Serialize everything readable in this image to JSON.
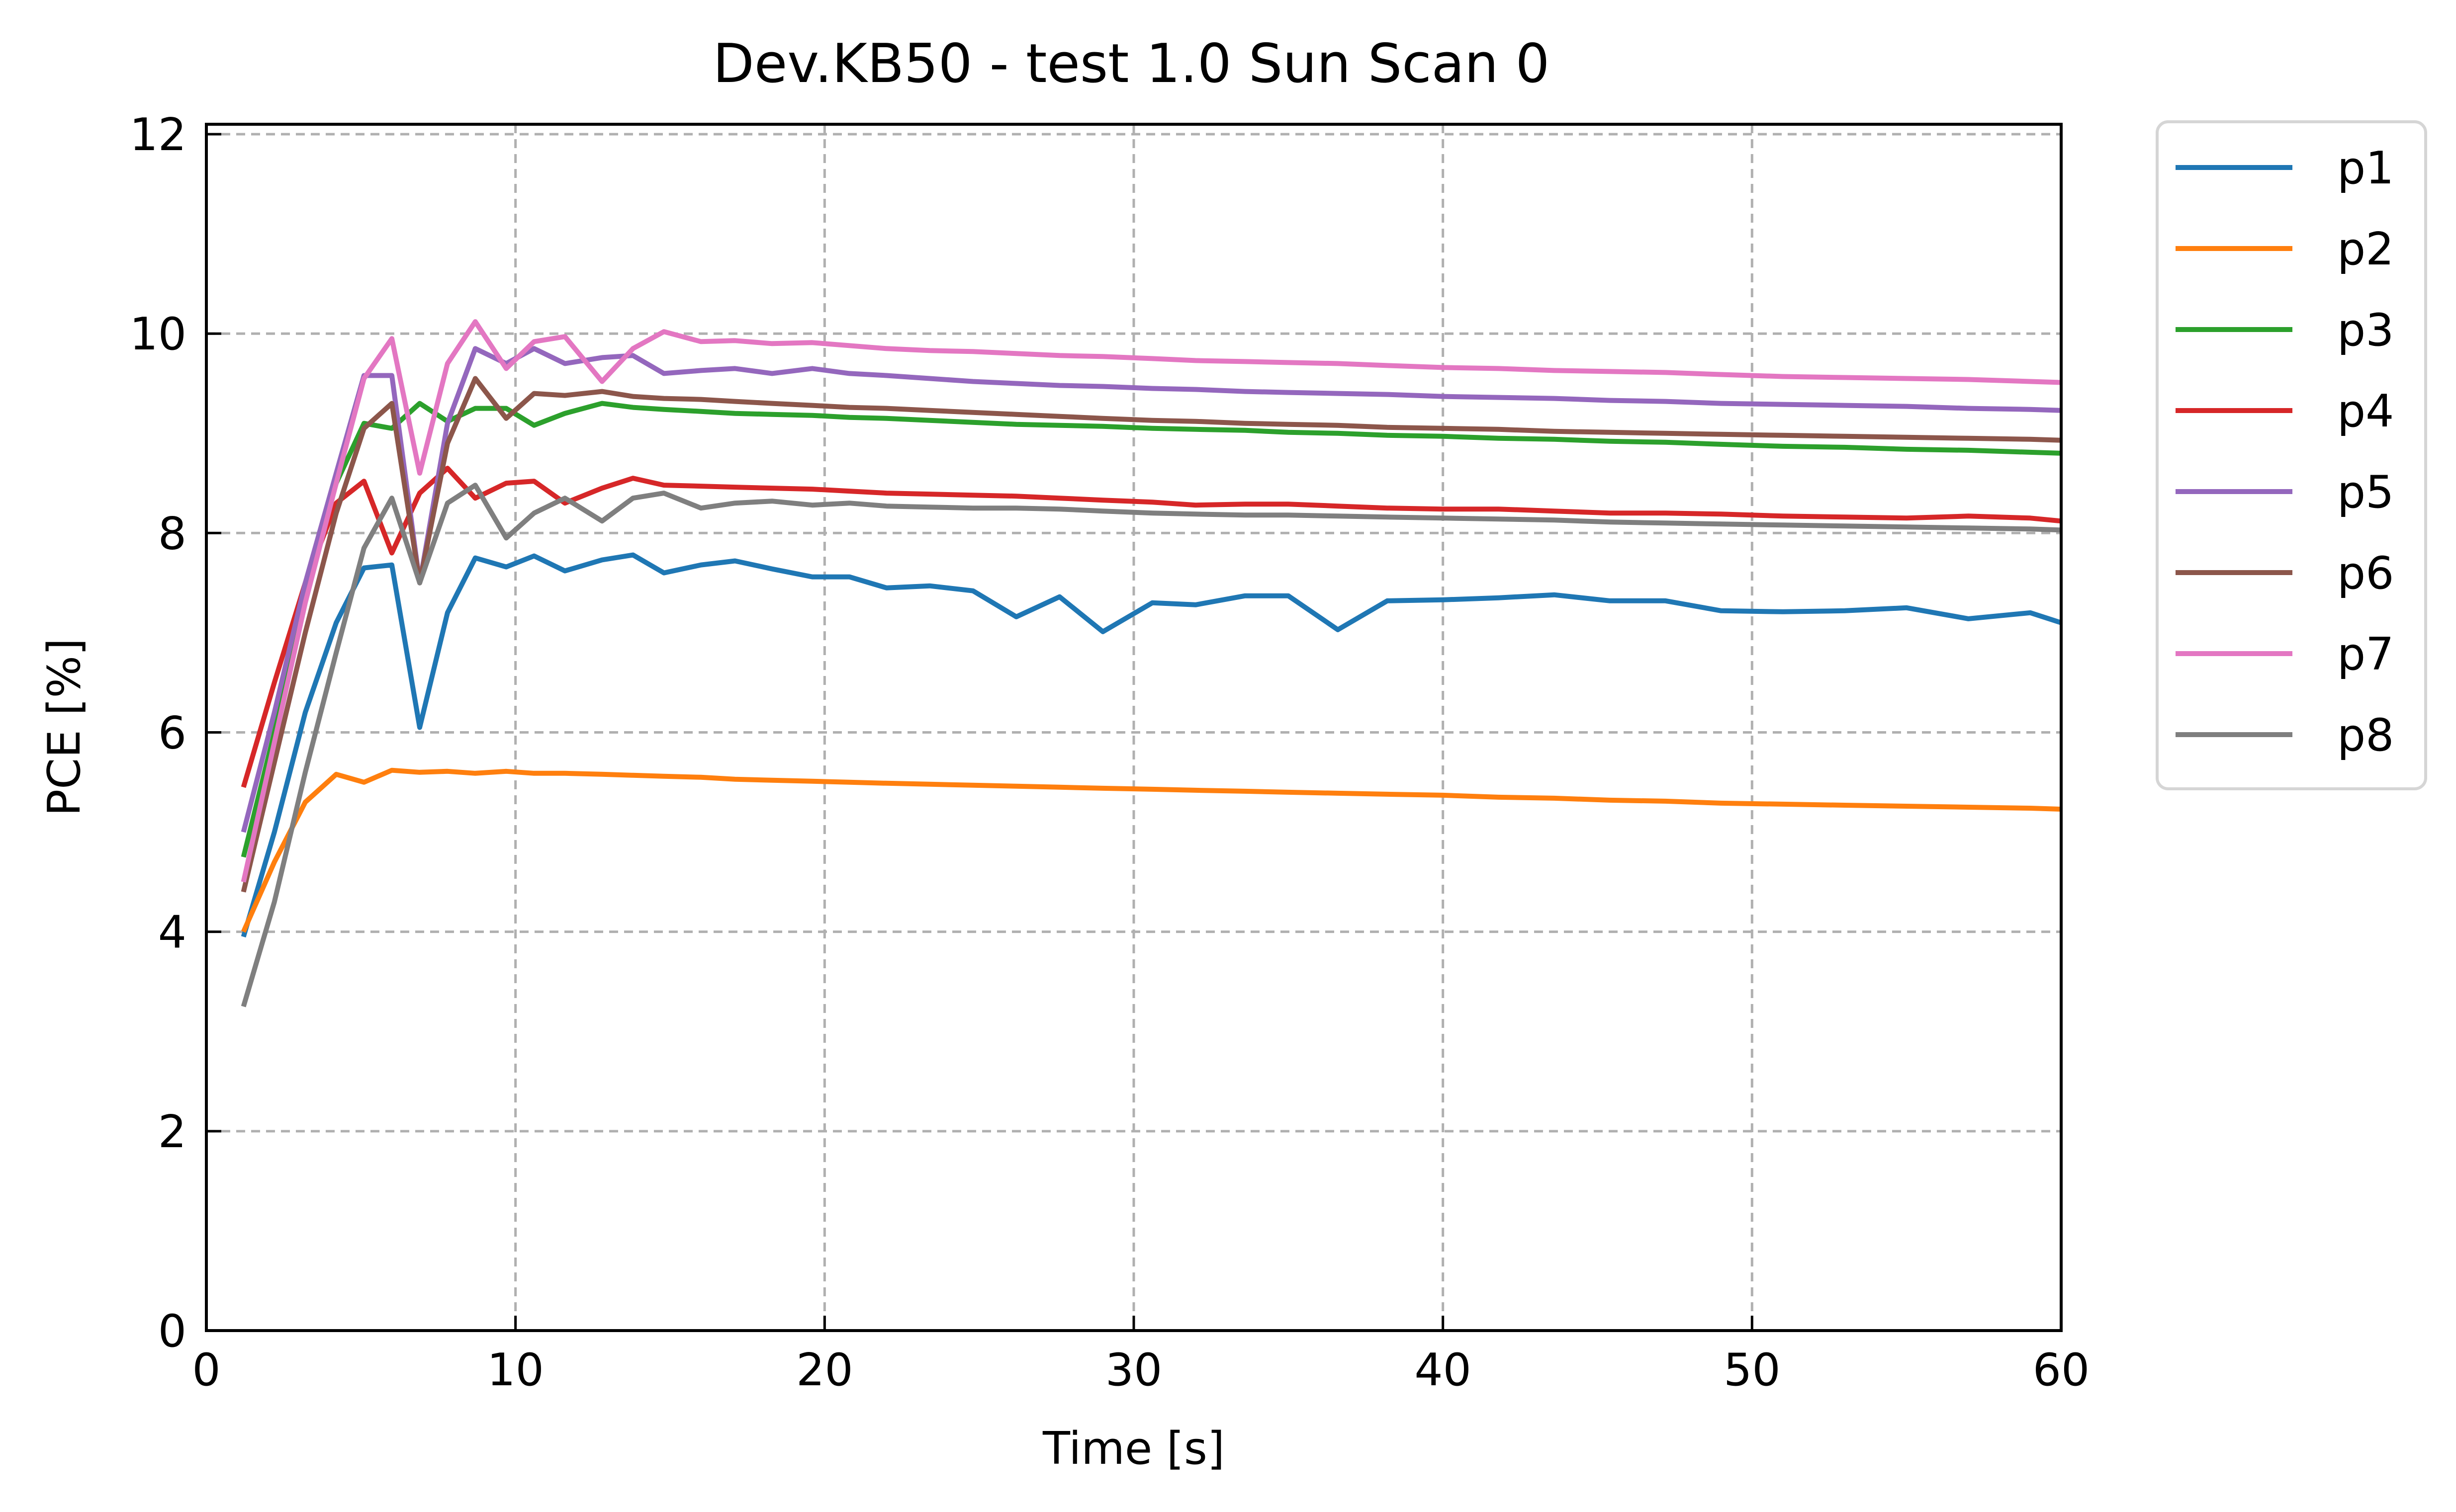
{
  "chart_data": {
    "type": "line",
    "title": "Dev.KB50 - test  1.0 Sun Scan 0",
    "xlabel": "Time [s]",
    "ylabel": "PCE [%]",
    "xlim": [
      0,
      60
    ],
    "ylim": [
      0,
      12.1
    ],
    "xticks": [
      0,
      10,
      20,
      30,
      40,
      50,
      60
    ],
    "yticks": [
      0,
      2,
      4,
      6,
      8,
      10,
      12
    ],
    "grid": true,
    "legend_position": "outside-top-right",
    "x": [
      1.2,
      2.2,
      3.2,
      4.2,
      5.1,
      6.0,
      6.9,
      7.8,
      8.7,
      9.7,
      10.6,
      11.6,
      12.8,
      13.8,
      14.8,
      16.0,
      17.1,
      18.3,
      19.6,
      20.8,
      22.0,
      23.4,
      24.8,
      26.2,
      27.6,
      29.0,
      30.6,
      32.0,
      33.6,
      35.0,
      36.6,
      38.2,
      40.0,
      41.8,
      43.6,
      45.4,
      47.2,
      49.0,
      51.0,
      53.0,
      55.0,
      57.0,
      59.0,
      60.0
    ],
    "series": [
      {
        "name": "p1",
        "color": "#1f77b4",
        "values": [
          3.95,
          5.0,
          6.2,
          7.1,
          7.65,
          7.68,
          6.05,
          7.2,
          7.75,
          7.66,
          7.77,
          7.62,
          7.73,
          7.78,
          7.6,
          7.68,
          7.72,
          7.64,
          7.56,
          7.56,
          7.45,
          7.47,
          7.42,
          7.16,
          7.36,
          7.01,
          7.3,
          7.28,
          7.37,
          7.37,
          7.03,
          7.32,
          7.33,
          7.35,
          7.38,
          7.32,
          7.32,
          7.22,
          7.21,
          7.22,
          7.25,
          7.14,
          7.2,
          7.1
        ]
      },
      {
        "name": "p2",
        "color": "#ff7f0e",
        "values": [
          4.0,
          4.7,
          5.3,
          5.58,
          5.5,
          5.62,
          5.6,
          5.61,
          5.59,
          5.61,
          5.59,
          5.59,
          5.58,
          5.57,
          5.56,
          5.55,
          5.53,
          5.52,
          5.51,
          5.5,
          5.49,
          5.48,
          5.47,
          5.46,
          5.45,
          5.44,
          5.43,
          5.42,
          5.41,
          5.4,
          5.39,
          5.38,
          5.37,
          5.35,
          5.34,
          5.32,
          5.31,
          5.29,
          5.28,
          5.27,
          5.26,
          5.25,
          5.24,
          5.23
        ]
      },
      {
        "name": "p3",
        "color": "#2ca02c",
        "values": [
          4.75,
          6.0,
          7.4,
          8.5,
          9.1,
          9.05,
          9.3,
          9.12,
          9.25,
          9.25,
          9.08,
          9.2,
          9.3,
          9.26,
          9.24,
          9.22,
          9.2,
          9.19,
          9.18,
          9.16,
          9.15,
          9.13,
          9.11,
          9.09,
          9.08,
          9.07,
          9.05,
          9.04,
          9.03,
          9.01,
          9.0,
          8.98,
          8.97,
          8.95,
          8.94,
          8.92,
          8.91,
          8.89,
          8.87,
          8.86,
          8.84,
          8.83,
          8.81,
          8.8
        ]
      },
      {
        "name": "p4",
        "color": "#d62728",
        "values": [
          5.45,
          6.5,
          7.5,
          8.3,
          8.52,
          7.8,
          8.4,
          8.65,
          8.35,
          8.5,
          8.52,
          8.3,
          8.45,
          8.55,
          8.48,
          8.47,
          8.46,
          8.45,
          8.44,
          8.42,
          8.4,
          8.39,
          8.38,
          8.37,
          8.35,
          8.33,
          8.31,
          8.28,
          8.29,
          8.29,
          8.27,
          8.25,
          8.24,
          8.24,
          8.22,
          8.2,
          8.2,
          8.19,
          8.17,
          8.16,
          8.15,
          8.17,
          8.15,
          8.12
        ]
      },
      {
        "name": "p5",
        "color": "#9467bd",
        "values": [
          5.0,
          6.2,
          7.5,
          8.6,
          9.58,
          9.58,
          7.5,
          9.1,
          9.85,
          9.7,
          9.85,
          9.7,
          9.76,
          9.78,
          9.6,
          9.63,
          9.65,
          9.6,
          9.65,
          9.6,
          9.58,
          9.55,
          9.52,
          9.5,
          9.48,
          9.47,
          9.45,
          9.44,
          9.42,
          9.41,
          9.4,
          9.39,
          9.37,
          9.36,
          9.35,
          9.33,
          9.32,
          9.3,
          9.29,
          9.28,
          9.27,
          9.25,
          9.24,
          9.23
        ]
      },
      {
        "name": "p6",
        "color": "#8c564b",
        "values": [
          4.4,
          5.7,
          7.0,
          8.2,
          9.05,
          9.3,
          7.5,
          8.9,
          9.55,
          9.15,
          9.4,
          9.38,
          9.42,
          9.37,
          9.35,
          9.34,
          9.32,
          9.3,
          9.28,
          9.26,
          9.25,
          9.23,
          9.21,
          9.19,
          9.17,
          9.15,
          9.13,
          9.12,
          9.1,
          9.09,
          9.08,
          9.06,
          9.05,
          9.04,
          9.02,
          9.01,
          9.0,
          8.99,
          8.98,
          8.97,
          8.96,
          8.95,
          8.94,
          8.93
        ]
      },
      {
        "name": "p7",
        "color": "#e377c2",
        "values": [
          4.5,
          5.9,
          7.3,
          8.5,
          9.55,
          9.95,
          8.6,
          9.7,
          10.12,
          9.65,
          9.92,
          9.97,
          9.52,
          9.85,
          10.02,
          9.92,
          9.93,
          9.9,
          9.91,
          9.88,
          9.85,
          9.83,
          9.82,
          9.8,
          9.78,
          9.77,
          9.75,
          9.73,
          9.72,
          9.71,
          9.7,
          9.68,
          9.66,
          9.65,
          9.63,
          9.62,
          9.61,
          9.59,
          9.57,
          9.56,
          9.55,
          9.54,
          9.52,
          9.51
        ]
      },
      {
        "name": "p8",
        "color": "#7f7f7f",
        "values": [
          3.25,
          4.3,
          5.6,
          6.8,
          7.85,
          8.35,
          7.5,
          8.3,
          8.48,
          7.95,
          8.2,
          8.35,
          8.12,
          8.35,
          8.4,
          8.25,
          8.3,
          8.32,
          8.28,
          8.3,
          8.27,
          8.26,
          8.25,
          8.25,
          8.24,
          8.22,
          8.2,
          8.19,
          8.18,
          8.18,
          8.17,
          8.16,
          8.15,
          8.14,
          8.13,
          8.11,
          8.1,
          8.09,
          8.08,
          8.07,
          8.06,
          8.05,
          8.04,
          8.03
        ]
      }
    ]
  }
}
